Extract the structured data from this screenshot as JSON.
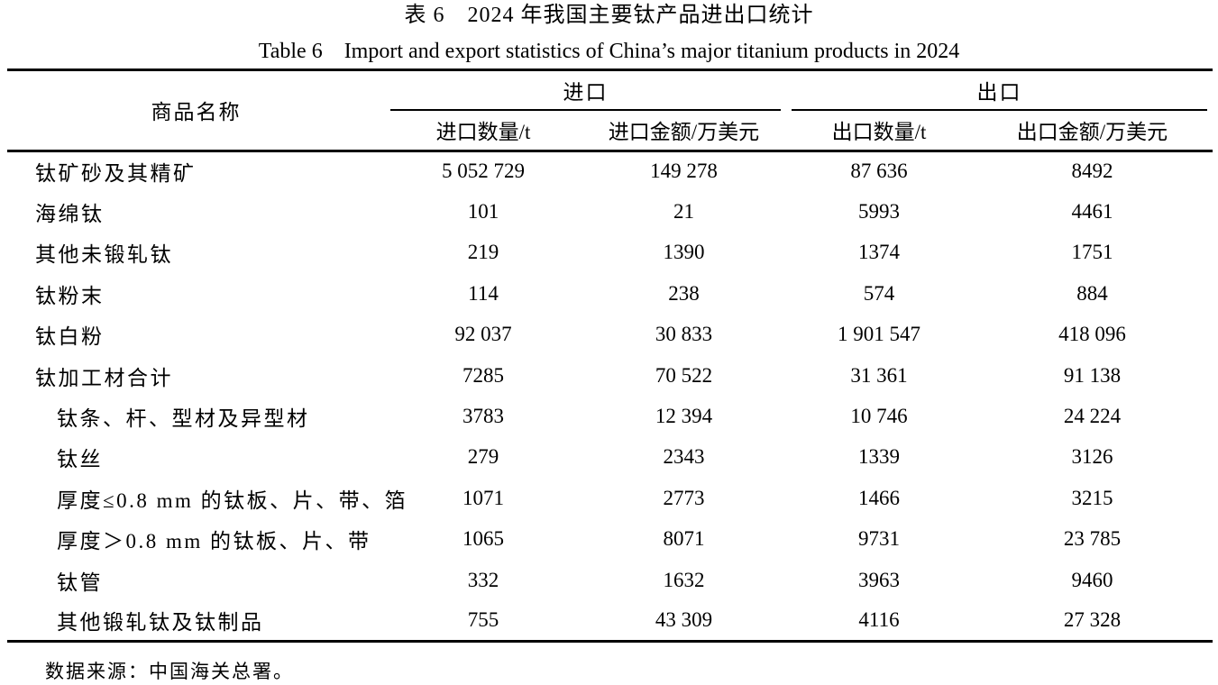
{
  "title_cn": "表 6　2024 年我国主要钛产品进出口统计",
  "title_en": "Table 6　Import and export statistics of China’s major titanium products in 2024",
  "table": {
    "col_product": "商品名称",
    "group_import": "进口",
    "group_export": "出口",
    "sub_headers": [
      "进口数量/t",
      "进口金额/万美元",
      "出口数量/t",
      "出口金额/万美元"
    ],
    "rows": [
      {
        "name": "钛矿砂及其精矿",
        "indent": false,
        "values": [
          "5 052 729",
          "149 278",
          "87 636",
          "8492"
        ]
      },
      {
        "name": "海绵钛",
        "indent": false,
        "values": [
          "101",
          "21",
          "5993",
          "4461"
        ]
      },
      {
        "name": "其他未锻轧钛",
        "indent": false,
        "values": [
          "219",
          "1390",
          "1374",
          "1751"
        ]
      },
      {
        "name": "钛粉末",
        "indent": false,
        "values": [
          "114",
          "238",
          "574",
          "884"
        ]
      },
      {
        "name": "钛白粉",
        "indent": false,
        "values": [
          "92 037",
          "30 833",
          "1 901 547",
          "418 096"
        ]
      },
      {
        "name": "钛加工材合计",
        "indent": false,
        "values": [
          "7285",
          "70 522",
          "31 361",
          "91 138"
        ]
      },
      {
        "name": "钛条、杆、型材及异型材",
        "indent": true,
        "values": [
          "3783",
          "12 394",
          "10 746",
          "24 224"
        ]
      },
      {
        "name": "钛丝",
        "indent": true,
        "values": [
          "279",
          "2343",
          "1339",
          "3126"
        ]
      },
      {
        "name": "厚度≤0.8 mm 的钛板、片、带、箔",
        "indent": true,
        "values": [
          "1071",
          "2773",
          "1466",
          "3215"
        ]
      },
      {
        "name": "厚度＞0.8 mm 的钛板、片、带",
        "indent": true,
        "values": [
          "1065",
          "8071",
          "9731",
          "23 785"
        ]
      },
      {
        "name": "钛管",
        "indent": true,
        "values": [
          "332",
          "1632",
          "3963",
          "9460"
        ]
      },
      {
        "name": "其他锻轧钛及钛制品",
        "indent": true,
        "values": [
          "755",
          "43 309",
          "4116",
          "27 328"
        ]
      }
    ]
  },
  "footnote": "数据来源：中国海关总署。"
}
